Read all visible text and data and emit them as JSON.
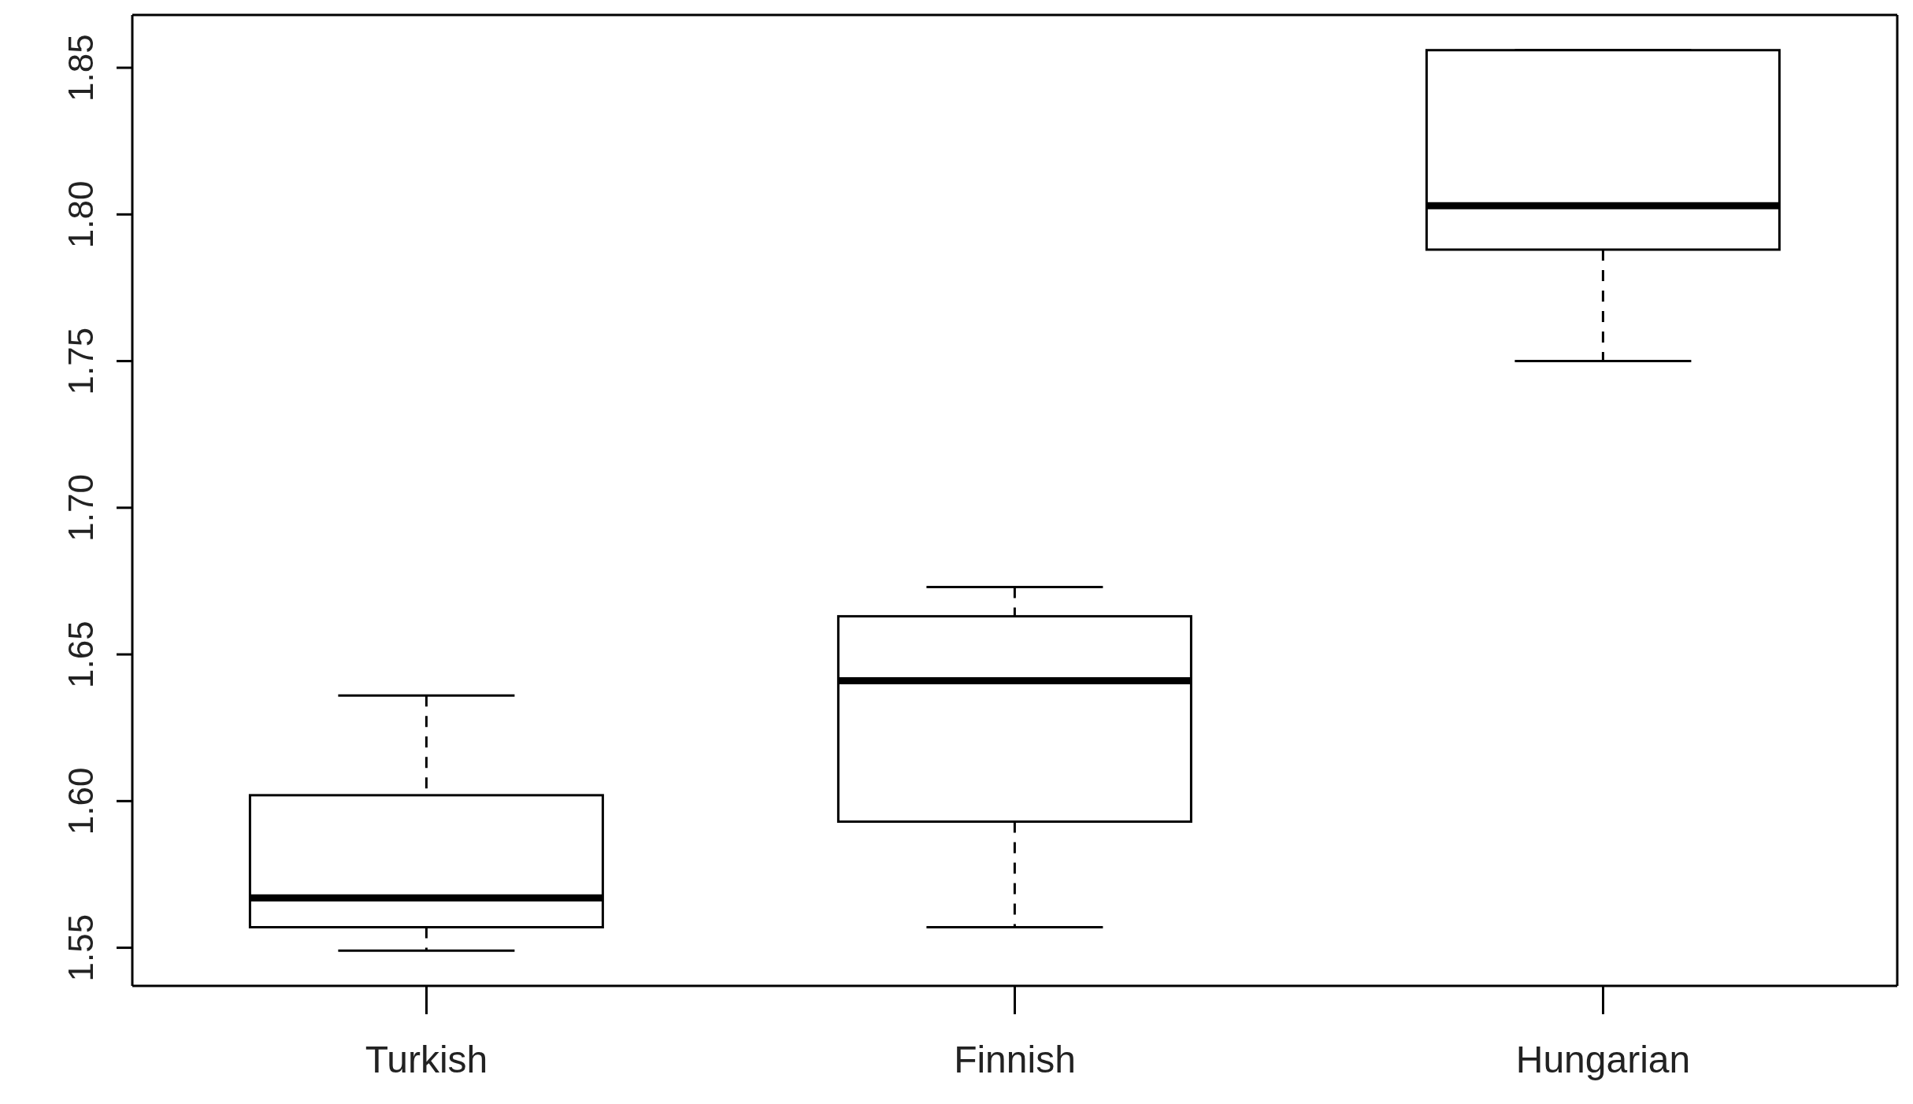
{
  "chart_data": {
    "type": "box",
    "categories": [
      "Turkish",
      "Finnish",
      "Hungarian"
    ],
    "boxes": [
      {
        "low": 1.549,
        "q1": 1.557,
        "median": 1.567,
        "q3": 1.602,
        "high": 1.636
      },
      {
        "low": 1.557,
        "q1": 1.593,
        "median": 1.641,
        "q3": 1.663,
        "high": 1.673
      },
      {
        "low": 1.75,
        "q1": 1.788,
        "median": 1.803,
        "q3": 1.856,
        "high": 1.856
      }
    ],
    "ylim": [
      1.537,
      1.868
    ],
    "yticks": [
      {
        "value": 1.55,
        "label": "1.55"
      },
      {
        "value": 1.6,
        "label": "1.60"
      },
      {
        "value": 1.65,
        "label": "1.65"
      },
      {
        "value": 1.7,
        "label": "1.70"
      },
      {
        "value": 1.75,
        "label": "1.75"
      },
      {
        "value": 1.8,
        "label": "1.80"
      },
      {
        "value": 1.85,
        "label": "1.85"
      }
    ],
    "grid": false
  }
}
